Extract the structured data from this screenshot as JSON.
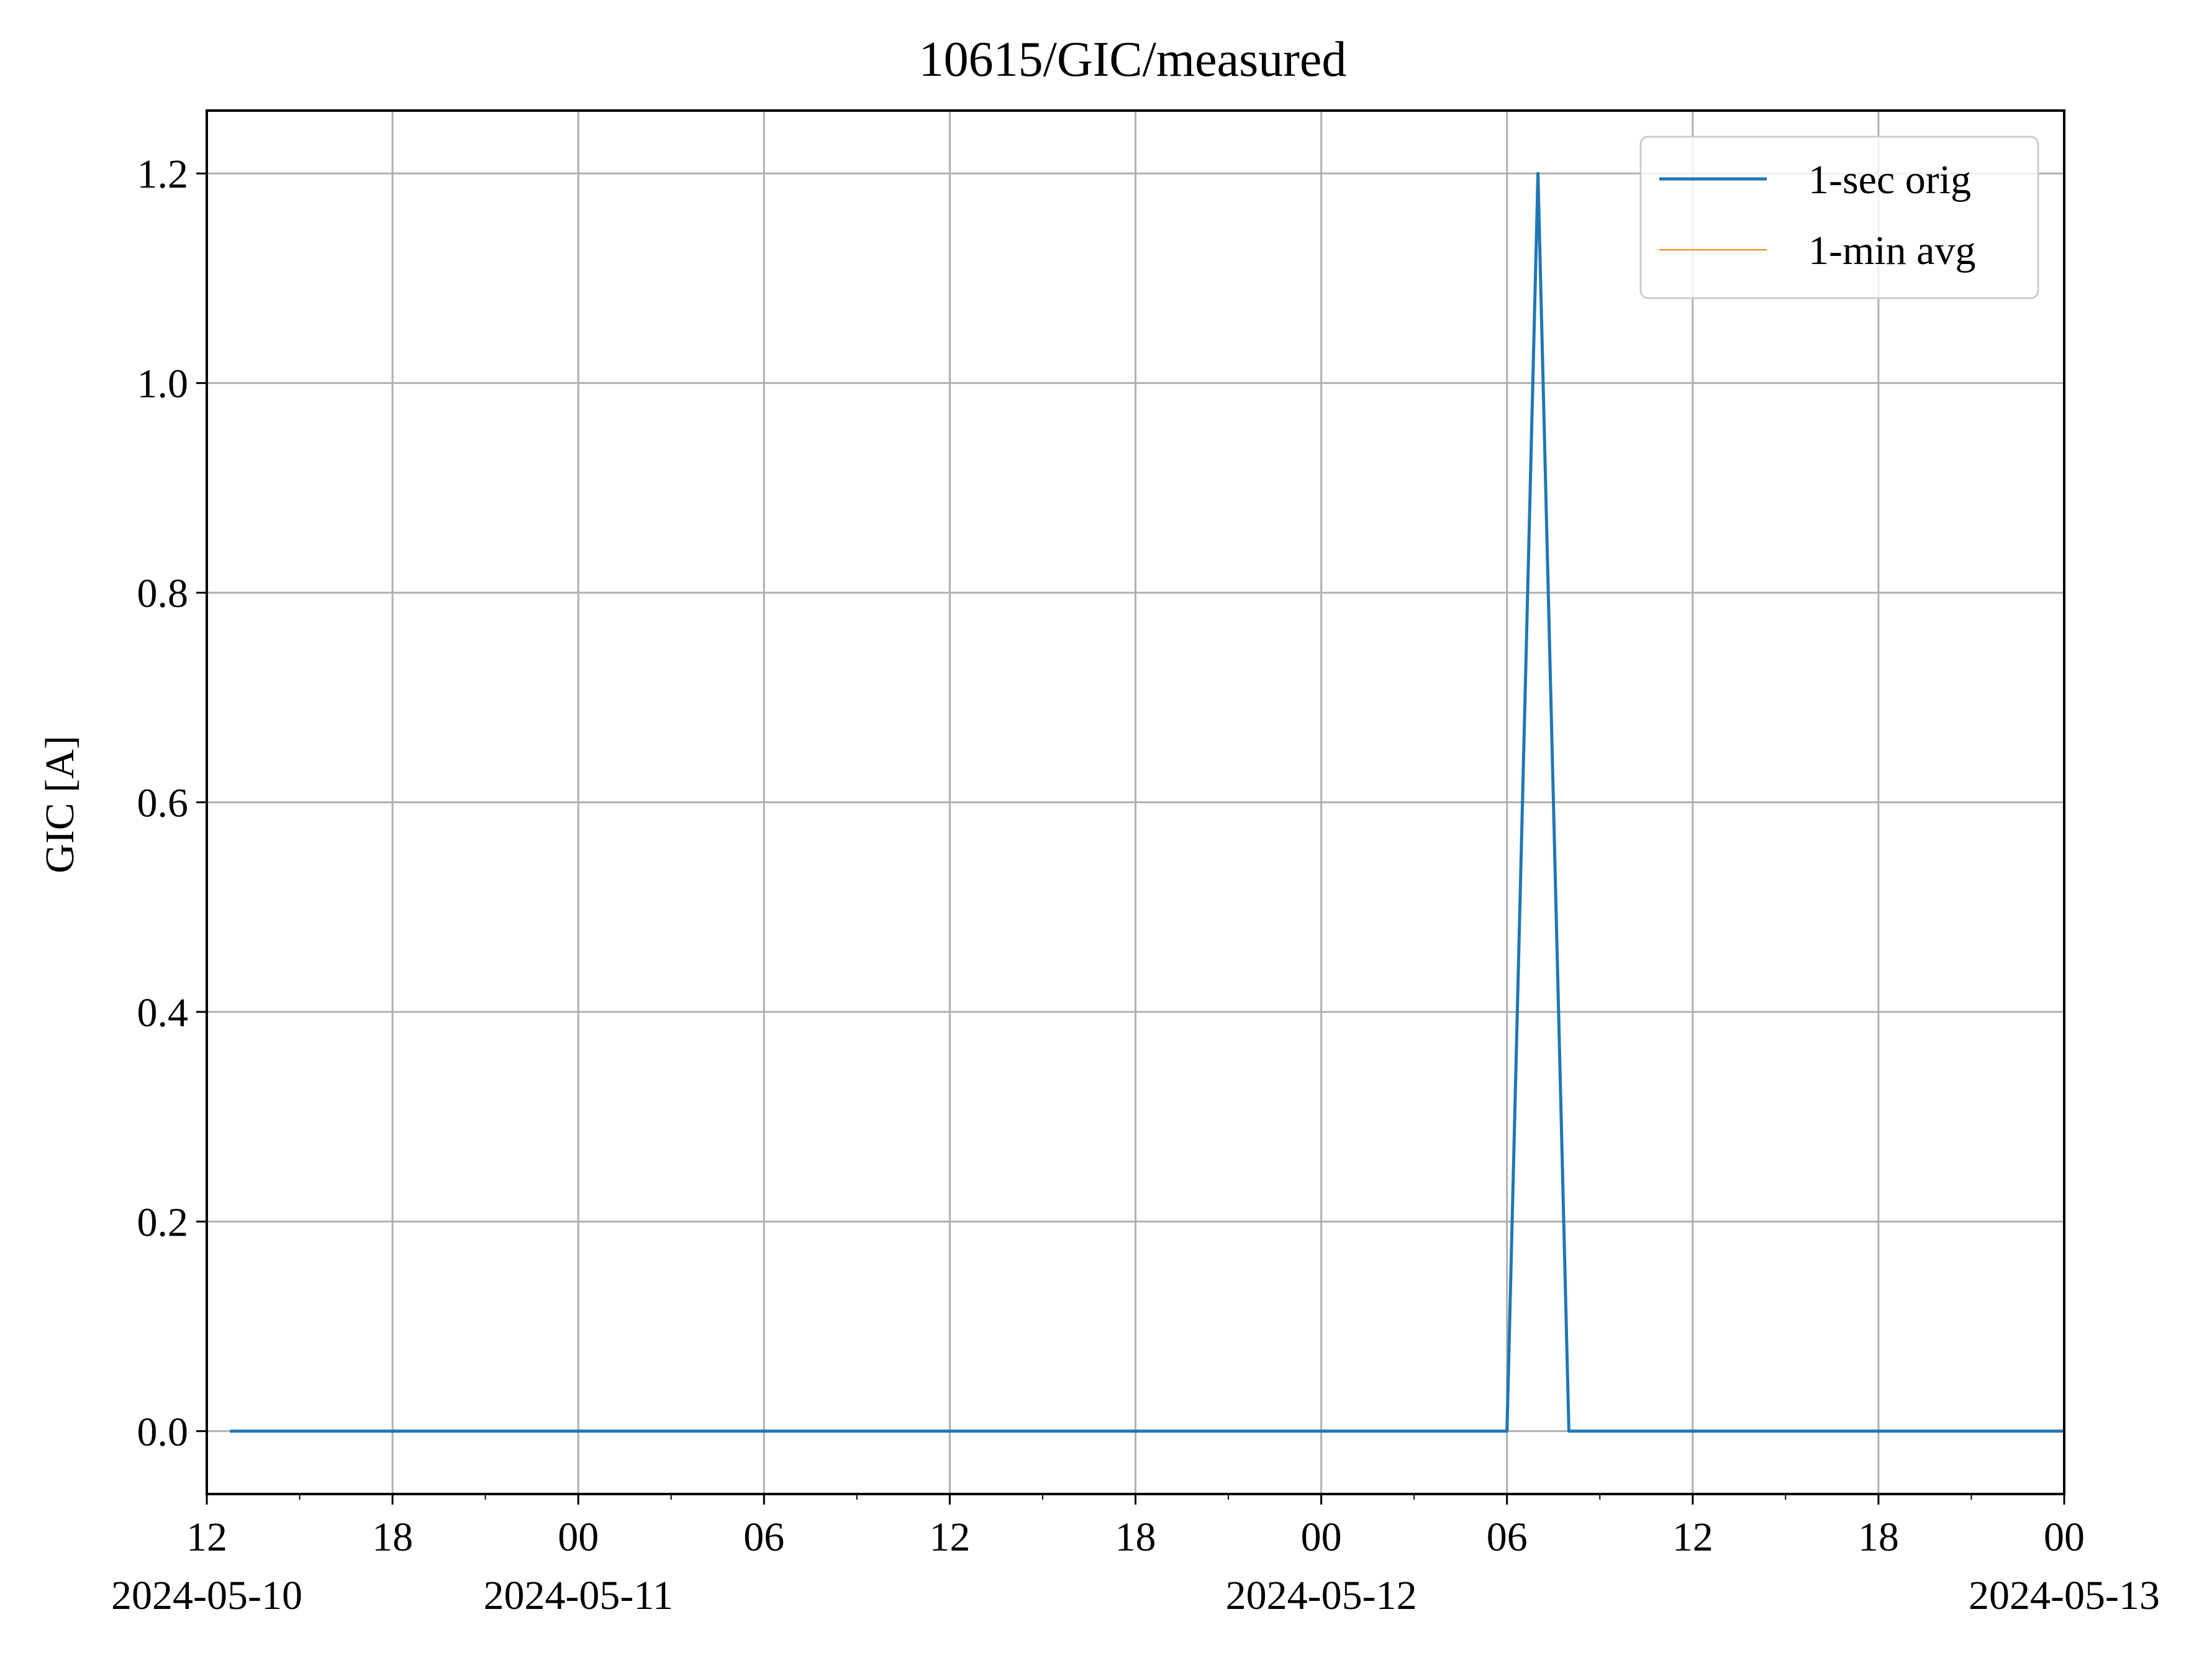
{
  "chart_data": {
    "type": "line",
    "title": "10615/GIC/measured",
    "xlabel": "",
    "ylabel": "GIC [A]",
    "x_axis_type": "datetime",
    "xlim": [
      "2024-05-10 12:00",
      "2024-05-13 00:00"
    ],
    "ylim": [
      -0.06,
      1.26
    ],
    "grid": true,
    "legend_position": "upper right",
    "x_ticks": [
      {
        "value": "2024-05-10 12:00",
        "label": "12",
        "sublabel": "2024-05-10"
      },
      {
        "value": "2024-05-10 18:00",
        "label": "18",
        "sublabel": ""
      },
      {
        "value": "2024-05-11 00:00",
        "label": "00",
        "sublabel": "2024-05-11"
      },
      {
        "value": "2024-05-11 06:00",
        "label": "06",
        "sublabel": ""
      },
      {
        "value": "2024-05-11 12:00",
        "label": "12",
        "sublabel": ""
      },
      {
        "value": "2024-05-11 18:00",
        "label": "18",
        "sublabel": ""
      },
      {
        "value": "2024-05-12 00:00",
        "label": "00",
        "sublabel": "2024-05-12"
      },
      {
        "value": "2024-05-12 06:00",
        "label": "06",
        "sublabel": ""
      },
      {
        "value": "2024-05-12 12:00",
        "label": "12",
        "sublabel": ""
      },
      {
        "value": "2024-05-12 18:00",
        "label": "18",
        "sublabel": ""
      },
      {
        "value": "2024-05-13 00:00",
        "label": "00",
        "sublabel": "2024-05-13"
      }
    ],
    "x_minor_ticks": [
      "2024-05-10 15:00",
      "2024-05-10 21:00",
      "2024-05-11 03:00",
      "2024-05-11 09:00",
      "2024-05-11 15:00",
      "2024-05-11 21:00",
      "2024-05-12 03:00",
      "2024-05-12 09:00",
      "2024-05-12 15:00",
      "2024-05-12 21:00"
    ],
    "y_ticks": [
      {
        "value": 0.0,
        "label": "0.0"
      },
      {
        "value": 0.2,
        "label": "0.2"
      },
      {
        "value": 0.4,
        "label": "0.4"
      },
      {
        "value": 0.6,
        "label": "0.6"
      },
      {
        "value": 0.8,
        "label": "0.8"
      },
      {
        "value": 1.0,
        "label": "1.0"
      },
      {
        "value": 1.2,
        "label": "1.2"
      }
    ],
    "series": [
      {
        "name": "1-sec orig",
        "color": "#1f77b4",
        "points": [
          {
            "x": "2024-05-10 12:45",
            "y": 0.0
          },
          {
            "x": "2024-05-12 06:00",
            "y": 0.0
          },
          {
            "x": "2024-05-12 07:00",
            "y": 1.2
          },
          {
            "x": "2024-05-12 08:00",
            "y": 0.0
          },
          {
            "x": "2024-05-13 00:00",
            "y": 0.0
          }
        ]
      },
      {
        "name": "1-min avg",
        "color": "#ff7f0e",
        "points": []
      }
    ]
  },
  "colors": {
    "grid": "#b0b0b0",
    "axes": "#000000",
    "legend_border": "#cccccc"
  }
}
